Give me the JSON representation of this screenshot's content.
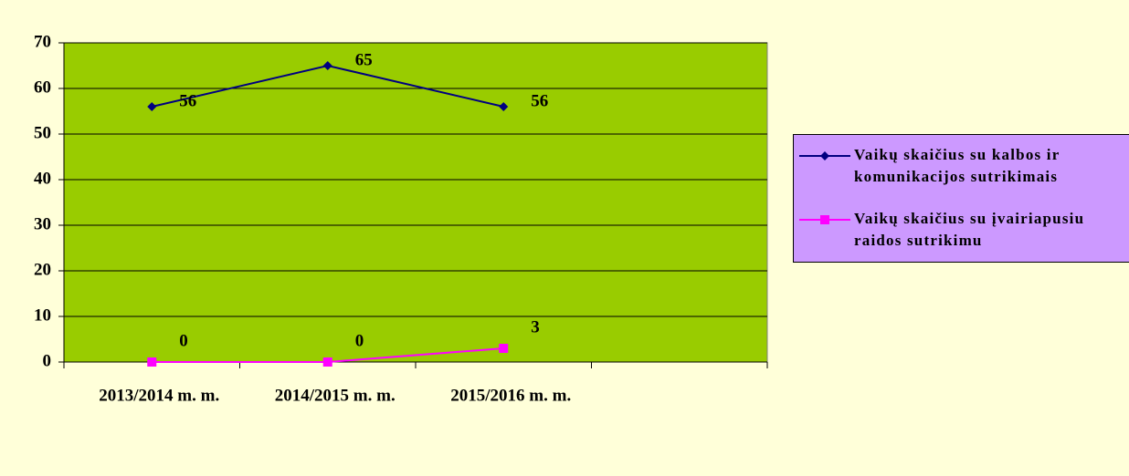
{
  "chart_data": {
    "type": "line",
    "categories": [
      "2013/2014 m. m.",
      "2014/2015 m. m.",
      "2015/2016 m. m.",
      null
    ],
    "series": [
      {
        "name": "Vaikų skaičius su kalbos ir komunikacijos sutrikimais",
        "color": "#000080",
        "marker": "diamond",
        "values": [
          56,
          65,
          56,
          null
        ]
      },
      {
        "name": "Vaikų skaičius su įvairiapusiu raidos sutrikimu",
        "color": "#ff00ff",
        "marker": "square",
        "values": [
          0,
          0,
          3,
          null
        ]
      }
    ],
    "ylim": [
      0,
      70
    ],
    "yticks": [
      0,
      10,
      20,
      30,
      40,
      50,
      60,
      70
    ],
    "grid": true,
    "plot_color": "#99cc00",
    "legend": "right"
  }
}
